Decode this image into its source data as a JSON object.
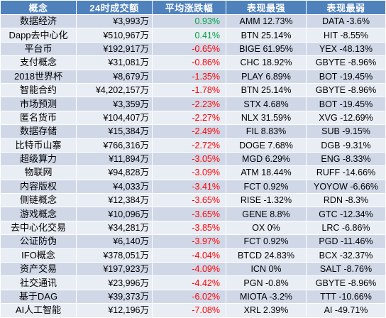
{
  "headers": {
    "concept": "概念",
    "volume": "24时成交额",
    "change": "平均涨跌幅",
    "best": "表现最强",
    "worst": "表现最弱"
  },
  "colors": {
    "header_bg": "#4f81bd",
    "row_odd": "#d0d8e8",
    "row_even": "#e9edf4",
    "up": "#00a040",
    "down": "#ff0000"
  },
  "rows": [
    {
      "concept": "数据经济",
      "volume": "¥3,993万",
      "change": "0.93%",
      "direction": "up",
      "best": "AMM 12.73%",
      "worst": "DATA -3.6%"
    },
    {
      "concept": "Dapp去中心化",
      "volume": "¥510,967万",
      "change": "0.41%",
      "direction": "up",
      "best": "BTN 25.14%",
      "worst": "HIT -8.55%"
    },
    {
      "concept": "平台币",
      "volume": "¥192,917万",
      "change": "-0.65%",
      "direction": "down",
      "best": "BIGE 61.95%",
      "worst": "YEX -48.13%"
    },
    {
      "concept": "支付概念",
      "volume": "¥31,081万",
      "change": "-0.86%",
      "direction": "down",
      "best": "CHC 18.92%",
      "worst": "GBYTE -8.96%"
    },
    {
      "concept": "2018世界杯",
      "volume": "¥8,679万",
      "change": "-1.35%",
      "direction": "down",
      "best": "PLAY 6.89%",
      "worst": "BOT -19.45%"
    },
    {
      "concept": "智能合约",
      "volume": "¥4,202,157万",
      "change": "-1.78%",
      "direction": "down",
      "best": "BTN 25.14%",
      "worst": "GBYTE -8.96%"
    },
    {
      "concept": "市场预测",
      "volume": "¥3,359万",
      "change": "-2.23%",
      "direction": "down",
      "best": "STX 4.68%",
      "worst": "BOT -19.45%"
    },
    {
      "concept": "匿名货币",
      "volume": "¥104,407万",
      "change": "-2.27%",
      "direction": "down",
      "best": "NLX 31.59%",
      "worst": "XVG -12.69%"
    },
    {
      "concept": "数据存储",
      "volume": "¥15,384万",
      "change": "-2.49%",
      "direction": "down",
      "best": "FIL 8.83%",
      "worst": "SUB -9.15%"
    },
    {
      "concept": "比特币山寨",
      "volume": "¥766,316万",
      "change": "-2.72%",
      "direction": "down",
      "best": "DOGE 7.68%",
      "worst": "DGB -9.31%"
    },
    {
      "concept": "超级算力",
      "volume": "¥11,894万",
      "change": "-3.05%",
      "direction": "down",
      "best": "MGD 6.29%",
      "worst": "ENG -8.33%"
    },
    {
      "concept": "物联网",
      "volume": "¥94,828万",
      "change": "-3.09%",
      "direction": "down",
      "best": "ATM 18.44%",
      "worst": "RUFF -14.66%"
    },
    {
      "concept": "内容版权",
      "volume": "¥4,033万",
      "change": "-3.41%",
      "direction": "down",
      "best": "FCT 0.92%",
      "worst": "YOYOW -6.66%"
    },
    {
      "concept": "侧链概念",
      "volume": "¥12,384万",
      "change": "-3.65%",
      "direction": "down",
      "best": "RISE -1.32%",
      "worst": "RDN -8.3%"
    },
    {
      "concept": "游戏概念",
      "volume": "¥10,096万",
      "change": "-3.65%",
      "direction": "down",
      "best": "GENE 8.8%",
      "worst": "GTC -12.34%"
    },
    {
      "concept": "去中心化交易",
      "volume": "¥34,281万",
      "change": "-3.85%",
      "direction": "down",
      "best": "OX 0%",
      "worst": "LRC -6.86%"
    },
    {
      "concept": "公证防伪",
      "volume": "¥6,140万",
      "change": "-3.97%",
      "direction": "down",
      "best": "FCT 0.92%",
      "worst": "PGD -11.46%"
    },
    {
      "concept": "IFO概念",
      "volume": "¥378,051万",
      "change": "-4.04%",
      "direction": "down",
      "best": "BTCD 24.83%",
      "worst": "BCX -32.37%"
    },
    {
      "concept": "资产交易",
      "volume": "¥197,923万",
      "change": "-4.09%",
      "direction": "down",
      "best": "ICN 0%",
      "worst": "SALT -8.76%"
    },
    {
      "concept": "社交通讯",
      "volume": "¥23,996万",
      "change": "-4.42%",
      "direction": "down",
      "best": "PGN -0.8%",
      "worst": "GBYTE -8.96%"
    },
    {
      "concept": "基于DAG",
      "volume": "¥39,373万",
      "change": "-6.02%",
      "direction": "down",
      "best": "MIOTA -3.2%",
      "worst": "TTT -10.66%"
    },
    {
      "concept": "AI人工智能",
      "volume": "¥12,196万",
      "change": "-7.08%",
      "direction": "down",
      "best": "XRL 2.39%",
      "worst": "AI -49.71%"
    }
  ]
}
